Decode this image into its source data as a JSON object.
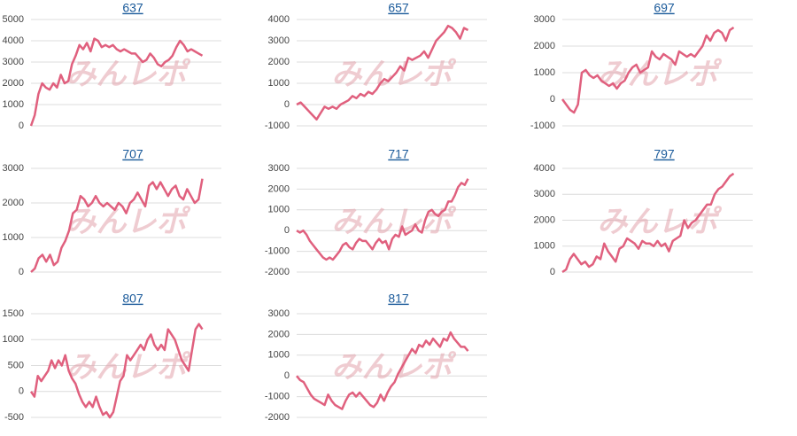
{
  "chart_data": [
    {
      "type": "line",
      "title": "637",
      "watermark": "みんレポ",
      "color": "#e0607e",
      "grid": true,
      "ylim": [
        0,
        5000
      ],
      "yticks": [
        0,
        1000,
        2000,
        3000,
        4000,
        5000
      ],
      "values": [
        0,
        500,
        1500,
        2000,
        1800,
        1700,
        2000,
        1800,
        2400,
        2000,
        2100,
        2900,
        3300,
        3800,
        3600,
        3900,
        3500,
        4100,
        4000,
        3700,
        3800,
        3700,
        3800,
        3600,
        3500,
        3600,
        3500,
        3400,
        3400,
        3200,
        3000,
        3100,
        3400,
        3200,
        2900,
        2800,
        3000,
        3100,
        3300,
        3700,
        4000,
        3800,
        3500,
        3600,
        3500,
        3400,
        3300
      ]
    },
    {
      "type": "line",
      "title": "657",
      "watermark": "みんレポ",
      "color": "#e0607e",
      "grid": true,
      "ylim": [
        -1000,
        4000
      ],
      "yticks": [
        -1000,
        0,
        1000,
        2000,
        3000,
        4000
      ],
      "values": [
        0,
        100,
        -100,
        -300,
        -500,
        -700,
        -400,
        -100,
        -200,
        -100,
        -200,
        0,
        100,
        200,
        400,
        300,
        500,
        400,
        600,
        500,
        700,
        1000,
        1200,
        1100,
        1300,
        1500,
        1800,
        1600,
        2200,
        2100,
        2200,
        2300,
        2500,
        2200,
        2600,
        3000,
        3200,
        3400,
        3700,
        3600,
        3400,
        3100,
        3600,
        3500
      ]
    },
    {
      "type": "line",
      "title": "697",
      "watermark": "みんレポ",
      "color": "#e0607e",
      "grid": true,
      "ylim": [
        -1000,
        3000
      ],
      "yticks": [
        -1000,
        0,
        1000,
        2000,
        3000
      ],
      "values": [
        0,
        -200,
        -400,
        -500,
        -200,
        1000,
        1100,
        900,
        800,
        900,
        700,
        600,
        500,
        600,
        400,
        600,
        700,
        1000,
        1200,
        1300,
        1000,
        1100,
        1200,
        1800,
        1600,
        1500,
        1700,
        1600,
        1500,
        1300,
        1800,
        1700,
        1600,
        1700,
        1600,
        1800,
        2000,
        2400,
        2200,
        2500,
        2600,
        2500,
        2200,
        2600,
        2700
      ]
    },
    {
      "type": "line",
      "title": "707",
      "watermark": "みんレポ",
      "color": "#e0607e",
      "grid": true,
      "ylim": [
        0,
        3000
      ],
      "yticks": [
        0,
        1000,
        2000,
        3000
      ],
      "values": [
        0,
        100,
        400,
        500,
        300,
        500,
        200,
        300,
        700,
        900,
        1200,
        1700,
        1800,
        2200,
        2100,
        1900,
        2000,
        2200,
        2000,
        1900,
        2000,
        1900,
        1800,
        2000,
        1900,
        1700,
        2000,
        2100,
        2300,
        2100,
        1900,
        2500,
        2600,
        2400,
        2600,
        2400,
        2200,
        2400,
        2500,
        2200,
        2100,
        2400,
        2200,
        2000,
        2100,
        2700
      ]
    },
    {
      "type": "line",
      "title": "717",
      "watermark": "みんレポ",
      "color": "#e0607e",
      "grid": true,
      "ylim": [
        -2000,
        3000
      ],
      "yticks": [
        -2000,
        -1000,
        0,
        1000,
        2000,
        3000
      ],
      "values": [
        0,
        -100,
        0,
        -200,
        -500,
        -700,
        -900,
        -1100,
        -1300,
        -1400,
        -1300,
        -1400,
        -1200,
        -1000,
        -700,
        -600,
        -800,
        -900,
        -600,
        -400,
        -500,
        -500,
        -700,
        -900,
        -600,
        -400,
        -600,
        -500,
        -900,
        -400,
        -200,
        -300,
        200,
        -200,
        -100,
        0,
        300,
        0,
        -100,
        500,
        900,
        1000,
        800,
        700,
        900,
        1000,
        1400,
        1400,
        1700,
        2100,
        2300,
        2200,
        2500
      ]
    },
    {
      "type": "line",
      "title": "797",
      "watermark": "みんレポ",
      "color": "#e0607e",
      "grid": true,
      "ylim": [
        0,
        4000
      ],
      "yticks": [
        0,
        1000,
        2000,
        3000,
        4000
      ],
      "values": [
        0,
        100,
        500,
        700,
        500,
        300,
        400,
        200,
        300,
        600,
        500,
        1100,
        800,
        600,
        400,
        900,
        1000,
        1300,
        1200,
        1100,
        900,
        1200,
        1100,
        1100,
        1000,
        1200,
        1000,
        1100,
        800,
        1200,
        1300,
        1400,
        2000,
        1700,
        1900,
        2000,
        2200,
        2400,
        2600,
        2600,
        3000,
        3200,
        3300,
        3500,
        3700,
        3800
      ]
    },
    {
      "type": "line",
      "title": "807",
      "watermark": "みんレポ",
      "color": "#e0607e",
      "grid": true,
      "ylim": [
        -500,
        1500
      ],
      "yticks": [
        -500,
        0,
        500,
        1000,
        1500
      ],
      "values": [
        0,
        -100,
        300,
        200,
        300,
        400,
        600,
        450,
        600,
        500,
        700,
        400,
        250,
        150,
        -50,
        -200,
        -300,
        -200,
        -300,
        -100,
        -300,
        -450,
        -400,
        -500,
        -400,
        -100,
        200,
        300,
        700,
        600,
        700,
        800,
        900,
        800,
        1000,
        1100,
        900,
        800,
        900,
        800,
        1200,
        1100,
        1000,
        800,
        600,
        500,
        400,
        800,
        1200,
        1300,
        1200
      ]
    },
    {
      "type": "line",
      "title": "817",
      "watermark": "みんレポ",
      "color": "#e0607e",
      "grid": true,
      "ylim": [
        -2000,
        3000
      ],
      "yticks": [
        -2000,
        -1000,
        0,
        1000,
        2000,
        3000
      ],
      "values": [
        0,
        -200,
        -300,
        -600,
        -900,
        -1100,
        -1200,
        -1300,
        -1400,
        -900,
        -1200,
        -1400,
        -1500,
        -1600,
        -1200,
        -900,
        -800,
        -1000,
        -800,
        -1000,
        -1200,
        -1400,
        -1500,
        -1300,
        -900,
        -1200,
        -800,
        -500,
        -300,
        100,
        400,
        700,
        1000,
        1300,
        1100,
        1500,
        1400,
        1700,
        1500,
        1800,
        1600,
        1400,
        1800,
        1700,
        2100,
        1800,
        1600,
        1400,
        1400,
        1200
      ]
    }
  ]
}
